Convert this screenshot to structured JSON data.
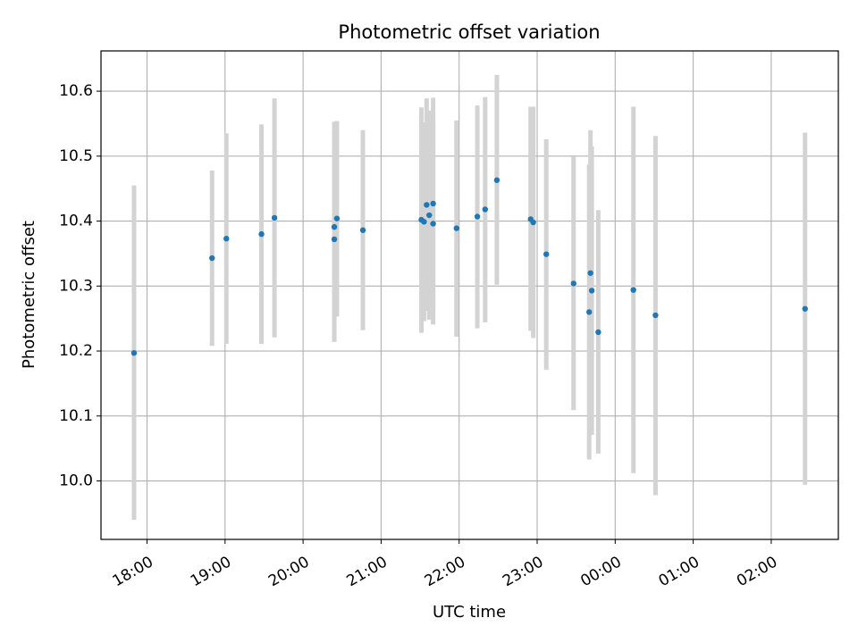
{
  "chart_data": {
    "type": "scatter",
    "title": "Photometric offset variation",
    "xlabel": "UTC time",
    "ylabel": "Photometric offset",
    "x_tick_labels": [
      "18:00",
      "19:00",
      "20:00",
      "21:00",
      "22:00",
      "23:00",
      "00:00",
      "01:00",
      "02:00"
    ],
    "x_tick_hours": [
      18,
      19,
      20,
      21,
      22,
      23,
      24,
      25,
      26
    ],
    "xlim_hours": [
      17.41,
      26.86
    ],
    "y_ticks": [
      10.0,
      10.1,
      10.2,
      10.3,
      10.4,
      10.5,
      10.6
    ],
    "y_tick_labels": [
      "10.0",
      "10.1",
      "10.2",
      "10.3",
      "10.4",
      "10.5",
      "10.6"
    ],
    "ylim": [
      9.91,
      10.662
    ],
    "grid": true,
    "colors": {
      "points": "#1f77b4",
      "errorbars": "#d3d3d3",
      "grid": "#b0b0b0"
    },
    "points": [
      {
        "time": "17:50",
        "offset": 10.197,
        "low": 9.94,
        "high": 10.455
      },
      {
        "time": "18:50",
        "offset": 10.343,
        "low": 10.208,
        "high": 10.478
      },
      {
        "time": "19:01",
        "offset": 10.373,
        "low": 10.211,
        "high": 10.535
      },
      {
        "time": "19:28",
        "offset": 10.38,
        "low": 10.211,
        "high": 10.549
      },
      {
        "time": "19:38",
        "offset": 10.405,
        "low": 10.221,
        "high": 10.589
      },
      {
        "time": "20:24",
        "offset": 10.391,
        "low": 10.229,
        "high": 10.553
      },
      {
        "time": "20:24",
        "offset": 10.372,
        "low": 10.214,
        "high": 10.531
      },
      {
        "time": "20:26",
        "offset": 10.404,
        "low": 10.253,
        "high": 10.554
      },
      {
        "time": "20:46",
        "offset": 10.386,
        "low": 10.232,
        "high": 10.54
      },
      {
        "time": "21:31",
        "offset": 10.402,
        "low": 10.228,
        "high": 10.575
      },
      {
        "time": "21:33",
        "offset": 10.399,
        "low": 10.246,
        "high": 10.552
      },
      {
        "time": "21:35",
        "offset": 10.425,
        "low": 10.262,
        "high": 10.589
      },
      {
        "time": "21:37",
        "offset": 10.409,
        "low": 10.248,
        "high": 10.57
      },
      {
        "time": "21:40",
        "offset": 10.427,
        "low": 10.262,
        "high": 10.59
      },
      {
        "time": "21:40",
        "offset": 10.396,
        "low": 10.241,
        "high": 10.552
      },
      {
        "time": "21:58",
        "offset": 10.389,
        "low": 10.222,
        "high": 10.555
      },
      {
        "time": "22:14",
        "offset": 10.407,
        "low": 10.235,
        "high": 10.578
      },
      {
        "time": "22:20",
        "offset": 10.418,
        "low": 10.244,
        "high": 10.591
      },
      {
        "time": "22:29",
        "offset": 10.463,
        "low": 10.302,
        "high": 10.625
      },
      {
        "time": "22:55",
        "offset": 10.403,
        "low": 10.231,
        "high": 10.576
      },
      {
        "time": "22:57",
        "offset": 10.398,
        "low": 10.22,
        "high": 10.576
      },
      {
        "time": "23:07",
        "offset": 10.349,
        "low": 10.171,
        "high": 10.526
      },
      {
        "time": "23:28",
        "offset": 10.304,
        "low": 10.109,
        "high": 10.499
      },
      {
        "time": "23:40",
        "offset": 10.26,
        "low": 10.033,
        "high": 10.487
      },
      {
        "time": "23:41",
        "offset": 10.32,
        "low": 10.1,
        "high": 10.54
      },
      {
        "time": "23:42",
        "offset": 10.293,
        "low": 10.071,
        "high": 10.515
      },
      {
        "time": "23:47",
        "offset": 10.229,
        "low": 10.042,
        "high": 10.417
      },
      {
        "time": "00:14",
        "offset": 10.294,
        "low": 10.012,
        "high": 10.576
      },
      {
        "time": "00:31",
        "offset": 10.255,
        "low": 9.978,
        "high": 10.531
      },
      {
        "time": "02:26",
        "offset": 10.265,
        "low": 9.994,
        "high": 10.536
      }
    ]
  }
}
